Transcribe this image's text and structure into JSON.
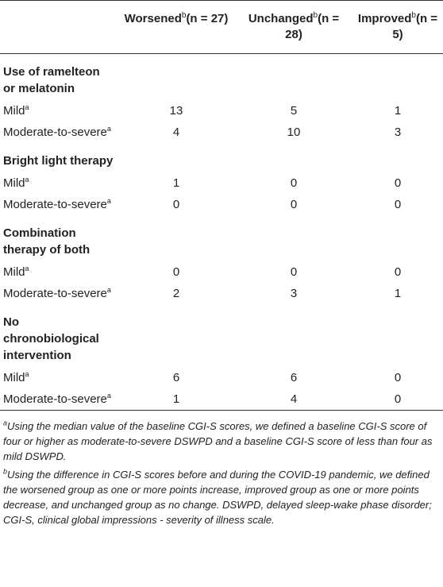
{
  "header": {
    "col0": "",
    "col1": {
      "pre": "Worsened",
      "sup": "b",
      "post": "(n = 27)"
    },
    "col2": {
      "pre": "Unchanged",
      "sup": "b",
      "post": "(n = 28)"
    },
    "col3": {
      "pre": "Improved",
      "sup": "b",
      "post": "(n = 5)"
    }
  },
  "groups": [
    {
      "title": "Use of ramelteon or melatonin",
      "rows": [
        {
          "label": "Mild",
          "sup": "a",
          "values": [
            "13",
            "5",
            "1"
          ]
        },
        {
          "label": "Moderate-to-severe",
          "sup": "a",
          "values": [
            "4",
            "10",
            "3"
          ]
        }
      ]
    },
    {
      "title": "Bright light therapy",
      "rows": [
        {
          "label": "Mild",
          "sup": "a",
          "values": [
            "1",
            "0",
            "0"
          ]
        },
        {
          "label": "Moderate-to-severe",
          "sup": "a",
          "values": [
            "0",
            "0",
            "0"
          ]
        }
      ]
    },
    {
      "title": "Combination therapy of both",
      "rows": [
        {
          "label": "Mild",
          "sup": "a",
          "values": [
            "0",
            "0",
            "0"
          ]
        },
        {
          "label": "Moderate-to-severe",
          "sup": "a",
          "values": [
            "2",
            "3",
            "1"
          ]
        }
      ]
    },
    {
      "title": "No chronobiological intervention",
      "rows": [
        {
          "label": "Mild",
          "sup": "a",
          "values": [
            "6",
            "6",
            "0"
          ]
        },
        {
          "label": "Moderate-to-severe",
          "sup": "a",
          "values": [
            "1",
            "4",
            "0"
          ]
        }
      ]
    }
  ],
  "footnotes": [
    {
      "mark": "a",
      "text": "Using the median value of the baseline CGI-S scores, we defined a baseline CGI-S score of four or higher as moderate-to-severe DSWPD and a baseline CGI-S score of less than four as mild DSWPD."
    },
    {
      "mark": "b",
      "text": "Using the difference in CGI-S scores before and during the COVID-19 pandemic, we defined the worsened group as one or more points increase, improved group as one or more points decrease, and unchanged group as no change. DSWPD, delayed sleep-wake phase disorder; CGI-S, clinical global impressions - severity of illness scale."
    }
  ]
}
